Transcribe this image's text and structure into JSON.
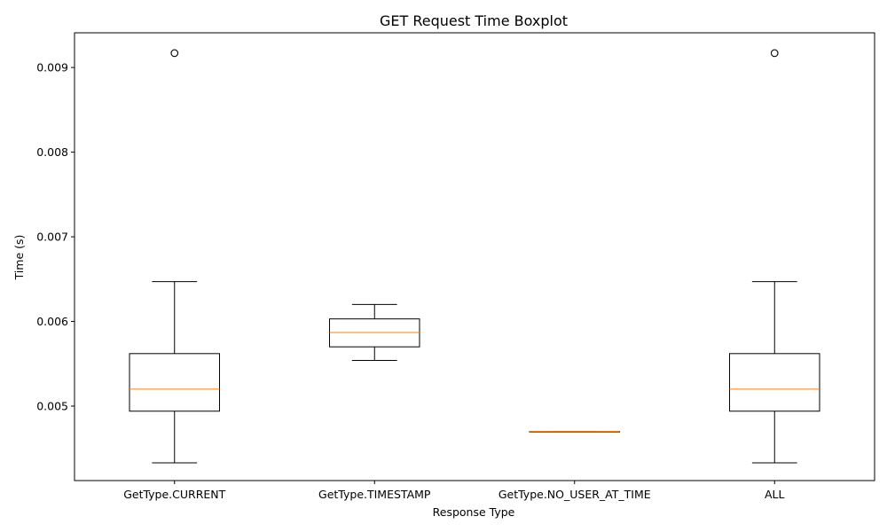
{
  "chart_data": {
    "type": "boxplot",
    "title": "GET Request Time Boxplot",
    "xlabel": "Response Type",
    "ylabel": "Time (s)",
    "ylim": [
      0.00412,
      0.00941
    ],
    "yticks": [
      0.005,
      0.006,
      0.007,
      0.008,
      0.009
    ],
    "ytick_labels": [
      "0.005",
      "0.006",
      "0.007",
      "0.008",
      "0.009"
    ],
    "grid": false,
    "colors": {
      "box": "#000000",
      "median": "#ff7f0e",
      "flier": "#000000"
    },
    "categories": [
      "GetType.CURRENT",
      "GetType.TIMESTAMP",
      "GetType.NO_USER_AT_TIME",
      "ALL"
    ],
    "boxes": [
      {
        "whislo": 0.00433,
        "q1": 0.00494,
        "med": 0.0052,
        "q3": 0.00562,
        "whishi": 0.00647,
        "fliers": [
          0.00917
        ]
      },
      {
        "whislo": 0.00554,
        "q1": 0.0057,
        "med": 0.00587,
        "q3": 0.00603,
        "whishi": 0.0062,
        "fliers": []
      },
      {
        "whislo": 0.0047,
        "q1": 0.0047,
        "med": 0.0047,
        "q3": 0.0047,
        "whishi": 0.0047,
        "fliers": []
      },
      {
        "whislo": 0.00433,
        "q1": 0.00494,
        "med": 0.0052,
        "q3": 0.00562,
        "whishi": 0.00647,
        "fliers": [
          0.00917
        ]
      }
    ]
  }
}
